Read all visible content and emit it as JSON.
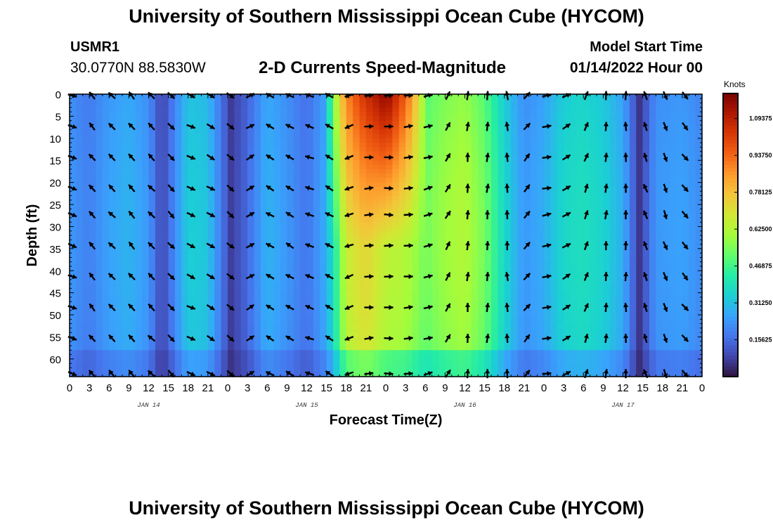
{
  "header": {
    "title": "University of Southern Mississippi Ocean Cube (HYCOM)",
    "station": "USMR1",
    "coords": "30.0770N  88.5830W",
    "subtitle": "2-D Currents Speed-Magnitude",
    "model_start_label": "Model Start Time",
    "model_start_value": "01/14/2022 Hour 00"
  },
  "footer": {
    "title": "University of Southern Mississippi Ocean Cube (HYCOM)"
  },
  "colorbar": {
    "unit": "Knots",
    "ticks": [
      {
        "value": 0.15625,
        "label": "0.15625"
      },
      {
        "value": 0.3125,
        "label": "0.31250"
      },
      {
        "value": 0.46875,
        "label": "0.46875"
      },
      {
        "value": 0.625,
        "label": "0.62500"
      },
      {
        "value": 0.78125,
        "label": "0.78125"
      },
      {
        "value": 0.9375,
        "label": "0.93750"
      },
      {
        "value": 1.09375,
        "label": "1.09375"
      }
    ],
    "range": [
      0,
      1.2
    ],
    "colors": [
      "#30123b",
      "#4145ab",
      "#4675ed",
      "#39a2fc",
      "#1bcfd4",
      "#24eca6",
      "#61fc6c",
      "#a4fc3b",
      "#d1e834",
      "#f3c63a",
      "#fe9b2d",
      "#f36315",
      "#d93806",
      "#b11901",
      "#7a0403"
    ]
  },
  "chart_data": {
    "type": "heatmap",
    "xlabel": "Forecast Time(Z)",
    "ylabel": "Depth (ft)",
    "x_ticks": [
      "0",
      "3",
      "6",
      "9",
      "12",
      "15",
      "18",
      "21",
      "0",
      "3",
      "6",
      "9",
      "12",
      "15",
      "18",
      "21",
      "0",
      "3",
      "6",
      "9",
      "12",
      "15",
      "18",
      "21",
      "0",
      "3",
      "6",
      "9",
      "12",
      "15",
      "18",
      "21",
      "0"
    ],
    "x_day_labels": [
      {
        "label": "JAN 14",
        "hour": 12
      },
      {
        "label": "JAN 15",
        "hour": 36
      },
      {
        "label": "JAN 16",
        "hour": 60
      },
      {
        "label": "JAN 17",
        "hour": 84
      }
    ],
    "x_range_hours": [
      0,
      96
    ],
    "y_ticks": [
      0,
      5,
      10,
      15,
      20,
      25,
      30,
      35,
      40,
      45,
      50,
      55,
      60
    ],
    "y_range_ft": [
      0,
      64
    ],
    "vector_times_hours": [
      0,
      3,
      6,
      9,
      12,
      15,
      18,
      21,
      24,
      27,
      30,
      33,
      36,
      39,
      42,
      45,
      48,
      51,
      54,
      57,
      60,
      63,
      66,
      69,
      72,
      75,
      78,
      81,
      84,
      87,
      90,
      93
    ],
    "vector_depths_ft": [
      0,
      7,
      14,
      21,
      27,
      34,
      41,
      48,
      55,
      63
    ],
    "column_speed_knots": [
      {
        "hour": 0,
        "speed": 0.22
      },
      {
        "hour": 3,
        "speed": 0.18
      },
      {
        "hour": 6,
        "speed": 0.24
      },
      {
        "hour": 9,
        "speed": 0.27
      },
      {
        "hour": 12,
        "speed": 0.22
      },
      {
        "hour": 14,
        "speed": 0.08
      },
      {
        "hour": 16,
        "speed": 0.2
      },
      {
        "hour": 18,
        "speed": 0.32
      },
      {
        "hour": 21,
        "speed": 0.3
      },
      {
        "hour": 23,
        "speed": 0.17
      },
      {
        "hour": 24.5,
        "speed": 0.07
      },
      {
        "hour": 27,
        "speed": 0.14
      },
      {
        "hour": 30,
        "speed": 0.27
      },
      {
        "hour": 33,
        "speed": 0.22
      },
      {
        "hour": 36,
        "speed": 0.16
      },
      {
        "hour": 39,
        "speed": 0.26
      },
      {
        "hour": 40.5,
        "speed": 0.42
      },
      {
        "hour": 42,
        "speed": 0.62
      },
      {
        "hour": 45,
        "speed": 0.68
      },
      {
        "hour": 48,
        "speed": 0.6
      },
      {
        "hour": 51,
        "speed": 0.58
      },
      {
        "hour": 54,
        "speed": 0.5
      },
      {
        "hour": 57,
        "speed": 0.55
      },
      {
        "hour": 60,
        "speed": 0.58
      },
      {
        "hour": 63,
        "speed": 0.5
      },
      {
        "hour": 66,
        "speed": 0.34
      },
      {
        "hour": 69,
        "speed": 0.22
      },
      {
        "hour": 72,
        "speed": 0.26
      },
      {
        "hour": 75,
        "speed": 0.34
      },
      {
        "hour": 78,
        "speed": 0.36
      },
      {
        "hour": 81,
        "speed": 0.33
      },
      {
        "hour": 84,
        "speed": 0.26
      },
      {
        "hour": 86.5,
        "speed": 0.06
      },
      {
        "hour": 89,
        "speed": 0.22
      },
      {
        "hour": 93,
        "speed": 0.24
      },
      {
        "hour": 96,
        "speed": 0.2
      }
    ],
    "surface_jet": {
      "start_hour": 39,
      "peak_hour": 48,
      "end_hour": 54,
      "peak_speed_knots": 1.18,
      "depth_extent_ft": 22
    },
    "vector_direction_deg_by_time": [
      {
        "hour": 0,
        "dir": 110
      },
      {
        "hour": 3,
        "dir": 320
      },
      {
        "hour": 6,
        "dir": 315
      },
      {
        "hour": 9,
        "dir": 320
      },
      {
        "hour": 12,
        "dir": 315
      },
      {
        "hour": 15,
        "dir": 135
      },
      {
        "hour": 18,
        "dir": 115
      },
      {
        "hour": 21,
        "dir": 120
      },
      {
        "hour": 24,
        "dir": 130
      },
      {
        "hour": 27,
        "dir": 60
      },
      {
        "hour": 30,
        "dir": 300
      },
      {
        "hour": 33,
        "dir": 300
      },
      {
        "hour": 36,
        "dir": 290
      },
      {
        "hour": 39,
        "dir": 300
      },
      {
        "hour": 42,
        "dir": 250
      },
      {
        "hour": 45,
        "dir": 85
      },
      {
        "hour": 48,
        "dir": 90
      },
      {
        "hour": 51,
        "dir": 85
      },
      {
        "hour": 54,
        "dir": 75
      },
      {
        "hour": 57,
        "dir": 30
      },
      {
        "hour": 60,
        "dir": 5
      },
      {
        "hour": 63,
        "dir": 5
      },
      {
        "hour": 66,
        "dir": 355
      },
      {
        "hour": 69,
        "dir": 40
      },
      {
        "hour": 72,
        "dir": 80
      },
      {
        "hour": 75,
        "dir": 60
      },
      {
        "hour": 78,
        "dir": 20
      },
      {
        "hour": 81,
        "dir": 5
      },
      {
        "hour": 84,
        "dir": 0
      },
      {
        "hour": 87,
        "dir": 340
      },
      {
        "hour": 90,
        "dir": 160
      },
      {
        "hour": 93,
        "dir": 140
      }
    ]
  }
}
